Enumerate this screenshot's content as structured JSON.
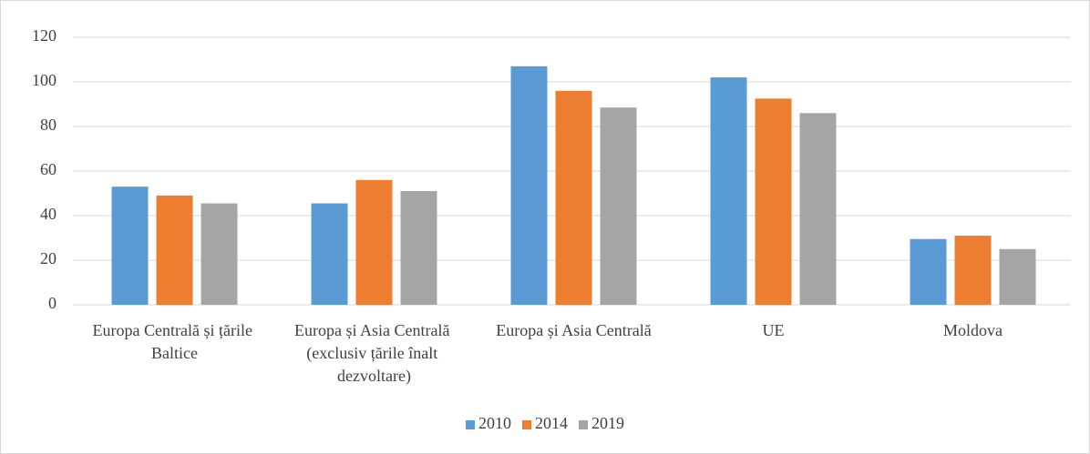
{
  "chart_data": {
    "type": "bar",
    "categories": [
      "Europa Centrală și țările Baltice",
      "Europa și Asia Centrală (exclusiv țările înalt dezvoltare)",
      "Europa și Asia Centrală",
      "UE",
      "Moldova"
    ],
    "series": [
      {
        "name": "2010",
        "color": "#5b9bd5",
        "values": [
          53,
          45.5,
          107,
          102,
          29.5
        ]
      },
      {
        "name": "2014",
        "color": "#ed7d31",
        "values": [
          49,
          56,
          96,
          92.5,
          31
        ]
      },
      {
        "name": "2019",
        "color": "#a5a5a5",
        "values": [
          45.5,
          51,
          88.5,
          86,
          25
        ]
      }
    ],
    "ylim": [
      0,
      120
    ],
    "yticks": [
      0,
      20,
      40,
      60,
      80,
      100,
      120
    ],
    "grid": true,
    "legend": "bottom"
  }
}
